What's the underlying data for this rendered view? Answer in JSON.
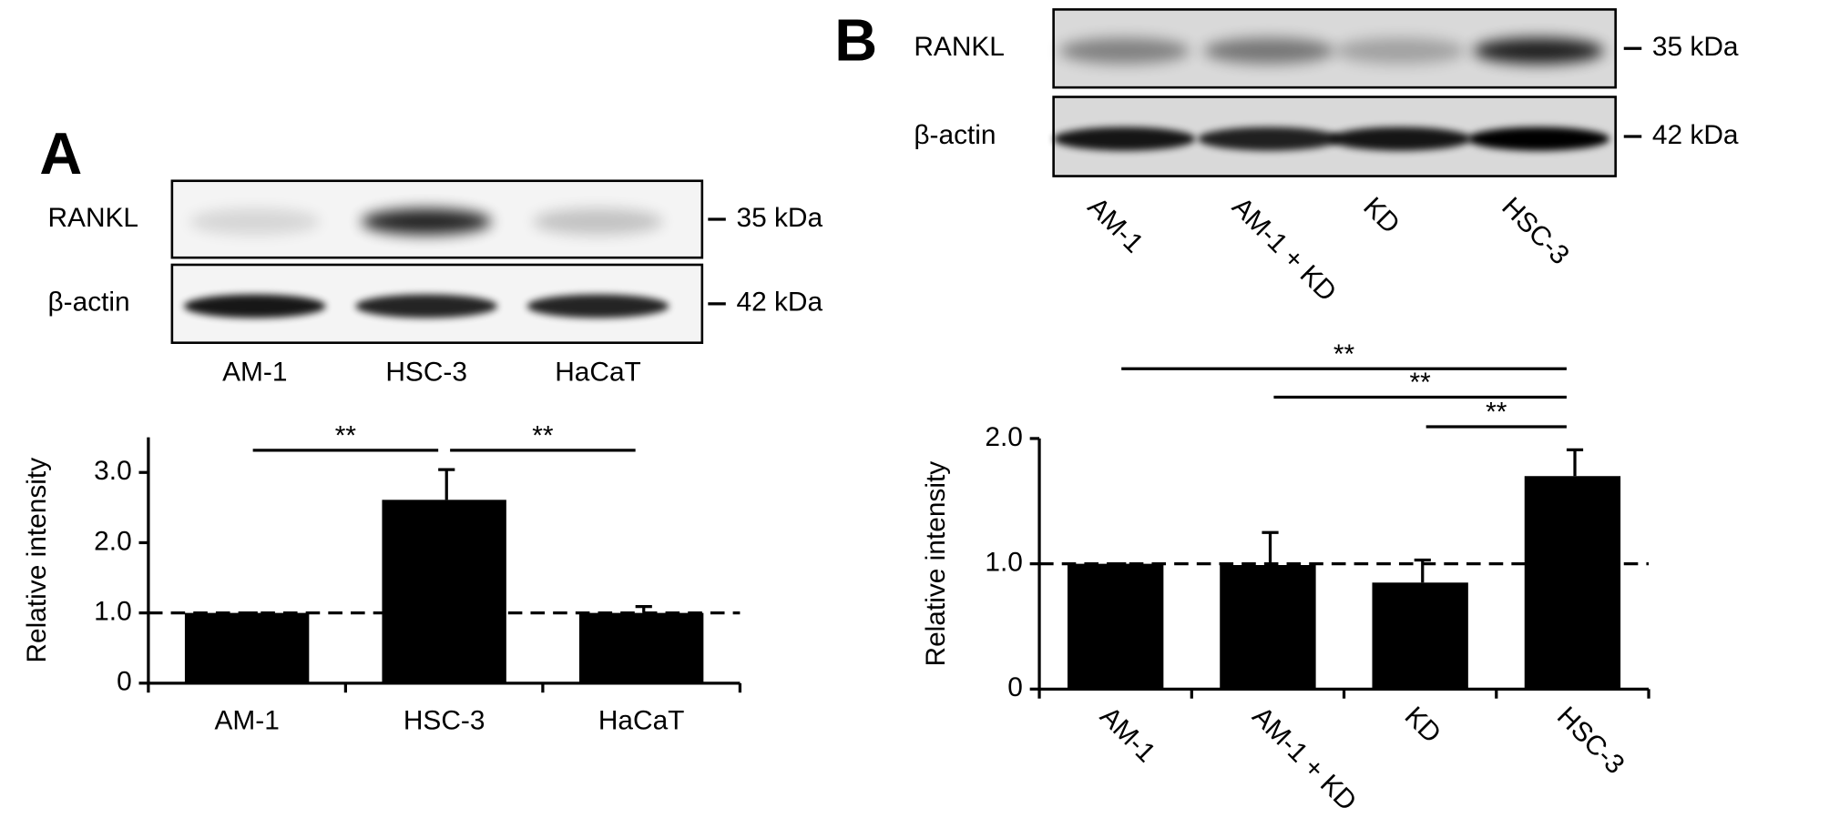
{
  "panels": [
    {
      "label": "A",
      "blot": {
        "rows": [
          {
            "name": "RANKL",
            "size": "35 kDa"
          },
          {
            "name": "β-actin",
            "size": "42 kDa"
          }
        ],
        "lanes": [
          "AM-1",
          "HSC-3",
          "HaCaT"
        ]
      }
    },
    {
      "label": "B",
      "blot": {
        "rows": [
          {
            "name": "RANKL",
            "size": "35 kDa"
          },
          {
            "name": "β-actin",
            "size": "42 kDa"
          }
        ],
        "lanes": [
          "AM-1",
          "AM-1 + KD",
          "KD",
          "HSC-3"
        ]
      }
    }
  ],
  "chart_data": [
    {
      "type": "bar",
      "y_label": "Relative intensity",
      "categories": [
        "AM-1",
        "HSC-3",
        "HaCaT"
      ],
      "values": [
        1.0,
        2.61,
        1.0
      ],
      "errors": [
        0,
        0.43,
        0.09
      ],
      "color": "#000000",
      "ylim": [
        0,
        3.5
      ],
      "yticks": [
        0,
        {
          "value": 1,
          "label": "1.0"
        },
        {
          "value": 2,
          "label": "2.0"
        },
        {
          "value": 3,
          "label": "3.0"
        }
      ],
      "reference_line": 1,
      "significance": [
        {
          "from": 0,
          "to": 1,
          "label": "**"
        },
        {
          "from": 1,
          "to": 2,
          "label": "**"
        }
      ]
    },
    {
      "type": "bar",
      "y_label": "Relative intensity",
      "categories": [
        "AM-1",
        "AM-1 + KD",
        "KD",
        "HSC-3"
      ],
      "values": [
        1.0,
        0.99,
        0.85,
        1.7
      ],
      "errors": [
        0,
        0.26,
        0.18,
        0.21
      ],
      "color": "#000000",
      "ylim": [
        0,
        2
      ],
      "yticks": [
        0,
        {
          "value": 1,
          "label": "1.0"
        },
        {
          "value": 2,
          "label": "2.0"
        }
      ],
      "reference_line": 1,
      "significance": [
        {
          "from": 0,
          "to": 3,
          "label": "**"
        },
        {
          "from": 1,
          "to": 3,
          "label": "**"
        },
        {
          "from": 2,
          "to": 3,
          "label": "**"
        }
      ]
    }
  ]
}
